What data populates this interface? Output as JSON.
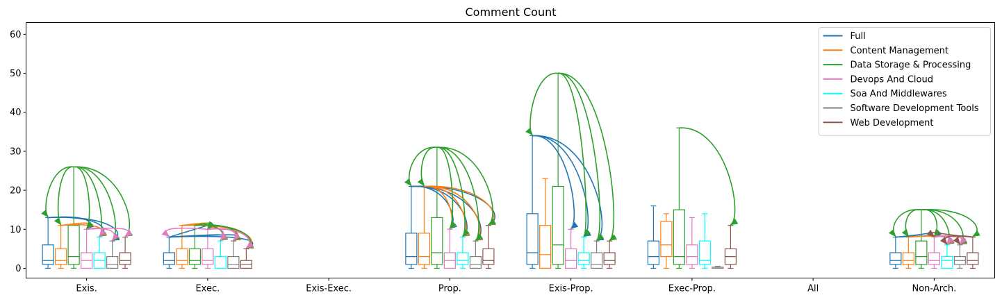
{
  "chart_data": {
    "type": "box",
    "title": "Comment Count",
    "xlabel": "",
    "ylabel": "",
    "ylim": [
      -2.5,
      63
    ],
    "yticks": [
      0,
      10,
      20,
      30,
      40,
      50,
      60
    ],
    "grid": false,
    "legend_position": "top-right",
    "categories": [
      "Exis.",
      "Exec.",
      "Exis-Exec.",
      "Prop.",
      "Exis-Prop.",
      "Exec-Prop.",
      "All",
      "Non-Arch."
    ],
    "series": [
      {
        "name": "Full",
        "color": "#1f77b4",
        "boxes": [
          {
            "whislo": 0,
            "q1": 1,
            "med": 2,
            "q3": 6,
            "whishi": 13
          },
          {
            "whislo": 0,
            "q1": 1,
            "med": 2,
            "q3": 4,
            "whishi": 8
          },
          null,
          {
            "whislo": 0,
            "q1": 1,
            "med": 3,
            "q3": 9,
            "whishi": 21
          },
          {
            "whislo": 0,
            "q1": 1,
            "med": 4,
            "q3": 14,
            "whishi": 34
          },
          {
            "whislo": 0,
            "q1": 1,
            "med": 3,
            "q3": 7,
            "whishi": 16
          },
          null,
          {
            "whislo": 0,
            "q1": 1,
            "med": 2,
            "q3": 4,
            "whishi": 8
          }
        ]
      },
      {
        "name": "Content Management",
        "color": "#ff7f0e",
        "boxes": [
          {
            "whislo": 0,
            "q1": 1,
            "med": 2,
            "q3": 5,
            "whishi": 11
          },
          {
            "whislo": 0,
            "q1": 1,
            "med": 2,
            "q3": 5,
            "whishi": 11
          },
          null,
          {
            "whislo": 0,
            "q1": 1,
            "med": 3,
            "q3": 9,
            "whishi": 21
          },
          {
            "whislo": 0,
            "q1": 0,
            "med": 3.5,
            "q3": 11,
            "whishi": 23
          },
          {
            "whislo": 0,
            "q1": 3,
            "med": 6,
            "q3": 12,
            "whishi": 14
          },
          null,
          {
            "whislo": 0,
            "q1": 1,
            "med": 2,
            "q3": 4,
            "whishi": 8
          }
        ]
      },
      {
        "name": "Data Storage & Processing",
        "color": "#2ca02c",
        "boxes": [
          {
            "whislo": 0,
            "q1": 1,
            "med": 3,
            "q3": 11,
            "whishi": 26
          },
          {
            "whislo": 0,
            "q1": 1,
            "med": 2,
            "q3": 5,
            "whishi": 11
          },
          null,
          {
            "whislo": 0,
            "q1": 1,
            "med": 4,
            "q3": 13,
            "whishi": 31
          },
          {
            "whislo": 0,
            "q1": 1,
            "med": 6,
            "q3": 21,
            "whishi": 50
          },
          {
            "whislo": 0,
            "q1": 1,
            "med": 3,
            "q3": 15,
            "whishi": 36
          },
          null,
          {
            "whislo": 0,
            "q1": 1,
            "med": 3,
            "q3": 7,
            "whishi": 15
          }
        ]
      },
      {
        "name": "Devops And Cloud",
        "color": "#e377c2",
        "boxes": [
          {
            "whislo": 0,
            "q1": 0,
            "med": 2,
            "q3": 4,
            "whishi": 10
          },
          {
            "whislo": 0,
            "q1": 1,
            "med": 2,
            "q3": 5,
            "whishi": 10
          },
          null,
          {
            "whislo": 0,
            "q1": 0,
            "med": 2,
            "q3": 4,
            "whishi": 10
          },
          {
            "whislo": 0,
            "q1": 0,
            "med": 2,
            "q3": 5,
            "whishi": 10
          },
          {
            "whislo": 0,
            "q1": 1,
            "med": 3,
            "q3": 6,
            "whishi": 13
          },
          null,
          {
            "whislo": 0,
            "q1": 1,
            "med": 2,
            "q3": 4,
            "whishi": 8
          }
        ]
      },
      {
        "name": "Soa And Middlewares",
        "color": "#00ffff",
        "boxes": [
          {
            "whislo": 0,
            "q1": 0,
            "med": 2,
            "q3": 4,
            "whishi": 8
          },
          {
            "whislo": 0,
            "q1": 0,
            "med": 0,
            "q3": 3,
            "whishi": 7
          },
          null,
          {
            "whislo": 0,
            "q1": 1,
            "med": 2,
            "q3": 4,
            "whishi": 8
          },
          {
            "whislo": 0,
            "q1": 1,
            "med": 2,
            "q3": 4,
            "whishi": 8
          },
          {
            "whislo": 0,
            "q1": 1,
            "med": 2,
            "q3": 7,
            "whishi": 14
          },
          null,
          {
            "whislo": 0,
            "q1": 0,
            "med": 2,
            "q3": 3,
            "whishi": 6
          }
        ]
      },
      {
        "name": "Software Development Tools",
        "color": "#7f7f7f",
        "boxes": [
          {
            "whislo": 0,
            "q1": 0,
            "med": 1,
            "q3": 3,
            "whishi": 7
          },
          {
            "whislo": 0,
            "q1": 0,
            "med": 1,
            "q3": 3,
            "whishi": 7
          },
          null,
          {
            "whislo": 0,
            "q1": 0,
            "med": 1,
            "q3": 3,
            "whishi": 7
          },
          {
            "whislo": 0,
            "q1": 0,
            "med": 1,
            "q3": 4,
            "whishi": 7
          },
          {
            "whislo": 0,
            "q1": 0,
            "med": 0,
            "q3": 0.3,
            "whishi": 0.5
          },
          null,
          {
            "whislo": 0,
            "q1": 1,
            "med": 2,
            "q3": 3,
            "whishi": 6
          }
        ]
      },
      {
        "name": "Web Development",
        "color": "#8c564b",
        "boxes": [
          {
            "whislo": 0,
            "q1": 1,
            "med": 2,
            "q3": 4,
            "whishi": 8
          },
          {
            "whislo": 0,
            "q1": 0,
            "med": 1,
            "q3": 2,
            "whishi": 5
          },
          null,
          {
            "whislo": 0,
            "q1": 1,
            "med": 2,
            "q3": 5,
            "whishi": 11
          },
          {
            "whislo": 0,
            "q1": 1,
            "med": 2,
            "q3": 4,
            "whishi": 7
          },
          {
            "whislo": 0,
            "q1": 1,
            "med": 3,
            "q3": 5,
            "whishi": 11
          },
          null,
          {
            "whislo": 0,
            "q1": 1,
            "med": 2,
            "q3": 4,
            "whishi": 8
          }
        ]
      }
    ],
    "annotations": [
      {
        "category": "Exis.",
        "from": "Full",
        "to": [
          "Devops And Cloud",
          "Soa And Middlewares",
          "Software Development Tools"
        ]
      },
      {
        "category": "Exis.",
        "from": "Content Management",
        "to": [
          "Devops And Cloud",
          "Soa And Middlewares"
        ]
      },
      {
        "category": "Exis.",
        "from": "Data Storage & Processing",
        "to": [
          "Full",
          "Content Management",
          "Devops And Cloud",
          "Soa And Middlewares",
          "Software Development Tools",
          "Web Development"
        ]
      },
      {
        "category": "Exis.",
        "from": "Devops And Cloud",
        "to": [
          "Soa And Middlewares",
          "Software Development Tools",
          "Web Development"
        ]
      },
      {
        "category": "Exec.",
        "from": "Full",
        "to": [
          "Devops And Cloud",
          "Soa And Middlewares",
          "Software Development Tools",
          "Web Development"
        ]
      },
      {
        "category": "Exec.",
        "from": "Content Management",
        "to": [
          "Devops And Cloud",
          "Soa And Middlewares",
          "Software Development Tools",
          "Web Development"
        ]
      },
      {
        "category": "Exec.",
        "from": "Data Storage & Processing",
        "to": [
          "Devops And Cloud",
          "Soa And Middlewares",
          "Software Development Tools",
          "Web Development"
        ]
      },
      {
        "category": "Exec.",
        "from": "Devops And Cloud",
        "to": [
          "Full",
          "Soa And Middlewares",
          "Software Development Tools",
          "Web Development"
        ]
      },
      {
        "category": "Prop.",
        "from": "Full",
        "to": [
          "Devops And Cloud",
          "Soa And Middlewares",
          "Software Development Tools",
          "Web Development"
        ]
      },
      {
        "category": "Prop.",
        "from": "Content Management",
        "to": [
          "Devops And Cloud",
          "Soa And Middlewares",
          "Software Development Tools",
          "Web Development"
        ]
      },
      {
        "category": "Prop.",
        "from": "Data Storage & Processing",
        "to": [
          "Full",
          "Content Management",
          "Devops And Cloud",
          "Soa And Middlewares",
          "Software Development Tools",
          "Web Development"
        ]
      },
      {
        "category": "Exis-Prop.",
        "from": "Full",
        "to": [
          "Devops And Cloud",
          "Soa And Middlewares",
          "Software Development Tools"
        ]
      },
      {
        "category": "Exis-Prop.",
        "from": "Data Storage & Processing",
        "to": [
          "Full",
          "Soa And Middlewares",
          "Software Development Tools",
          "Web Development"
        ]
      },
      {
        "category": "Exec-Prop.",
        "from": "Data Storage & Processing",
        "to": [
          "Web Development"
        ]
      },
      {
        "category": "Non-Arch.",
        "from": "Full",
        "to": [
          "Devops And Cloud",
          "Soa And Middlewares",
          "Software Development Tools"
        ]
      },
      {
        "category": "Non-Arch.",
        "from": "Content Management",
        "to": [
          "Soa And Middlewares",
          "Software Development Tools"
        ]
      },
      {
        "category": "Non-Arch.",
        "from": "Data Storage & Processing",
        "to": [
          "Full",
          "Content Management",
          "Devops And Cloud",
          "Soa And Middlewares",
          "Software Development Tools",
          "Web Development"
        ]
      },
      {
        "category": "Non-Arch.",
        "from": "Devops And Cloud",
        "to": [
          "Soa And Middlewares",
          "Software Development Tools"
        ]
      },
      {
        "category": "Non-Arch.",
        "from": "Web Development",
        "to": [
          "Devops And Cloud",
          "Soa And Middlewares",
          "Software Development Tools"
        ]
      }
    ]
  }
}
